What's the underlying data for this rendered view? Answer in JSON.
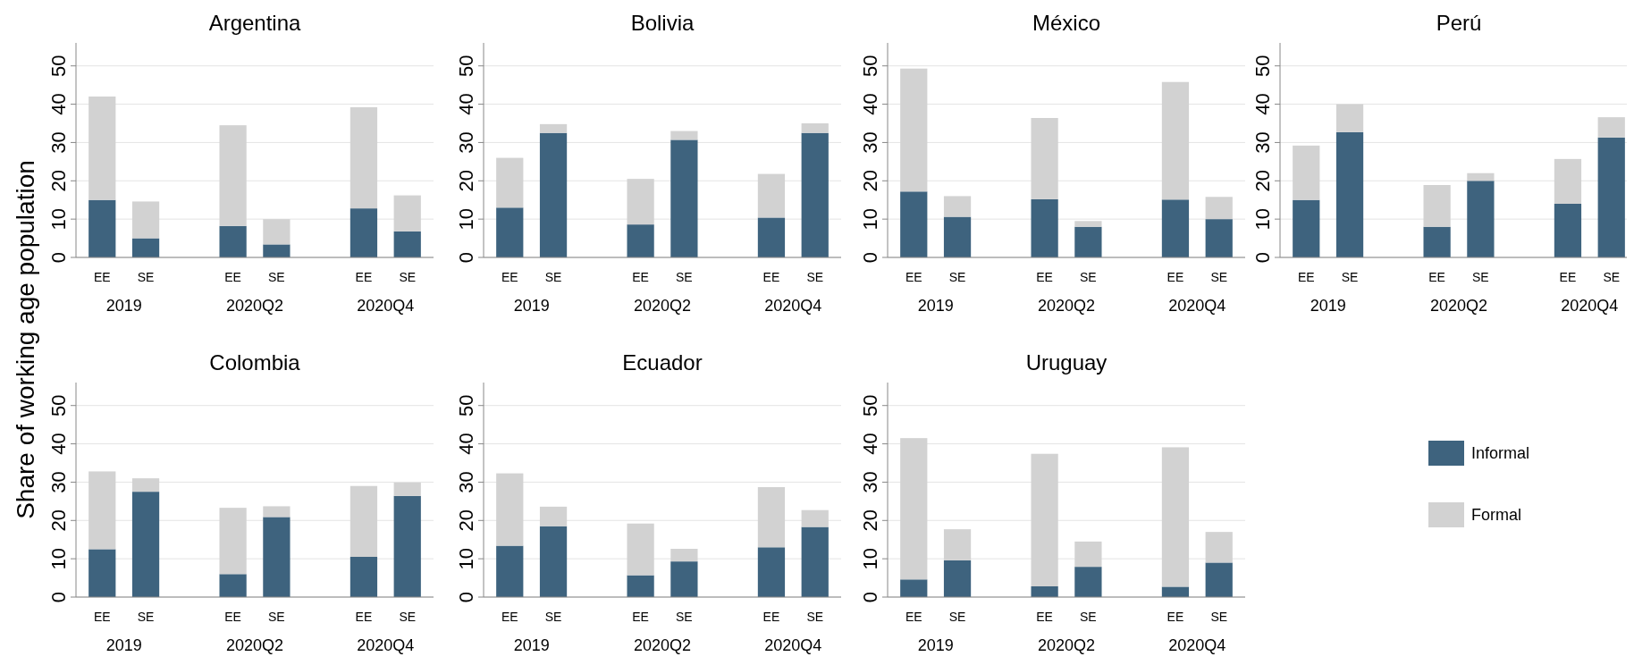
{
  "chart_data": [
    {
      "type": "bar",
      "title": "Argentina",
      "ylabel": "Share of working age population",
      "categories": [
        "EE",
        "SE",
        null,
        "EE",
        "SE",
        null,
        "EE",
        "SE"
      ],
      "annotations": [
        "2019",
        "2020Q2",
        "2020Q4"
      ],
      "stacked": true,
      "ylim": [
        0,
        56
      ],
      "yticks": [
        0,
        10,
        20,
        30,
        40,
        50
      ],
      "grid": "y",
      "series": [
        {
          "color": "#3e637e",
          "values": [
            15,
            5,
            null,
            8.2,
            3.4,
            null,
            12.8,
            6.8
          ]
        },
        {
          "color": "#d2d2d2",
          "values": [
            27,
            9.6,
            null,
            26.3,
            6.6,
            null,
            26.4,
            9.4
          ]
        }
      ]
    },
    {
      "type": "bar",
      "title": "Bolivia",
      "categories": [
        "EE",
        "SE",
        null,
        "EE",
        "SE",
        null,
        "EE",
        "SE"
      ],
      "annotations": [
        "2019",
        "2020Q2",
        "2020Q4"
      ],
      "stacked": true,
      "ylim": [
        0,
        56
      ],
      "yticks": [
        0,
        10,
        20,
        30,
        40,
        50
      ],
      "grid": "y",
      "series": [
        {
          "color": "#3e637e",
          "values": [
            13,
            32.5,
            null,
            8.6,
            30.7,
            null,
            10.4,
            32.5
          ]
        },
        {
          "color": "#d2d2d2",
          "values": [
            13,
            2.3,
            null,
            11.9,
            2.3,
            null,
            11.4,
            2.5
          ]
        }
      ]
    },
    {
      "type": "bar",
      "title": "México",
      "categories": [
        "EE",
        "SE",
        null,
        "EE",
        "SE",
        null,
        "EE",
        "SE"
      ],
      "annotations": [
        "2019",
        "2020Q2",
        "2020Q4"
      ],
      "stacked": true,
      "ylim": [
        0,
        56
      ],
      "yticks": [
        0,
        10,
        20,
        30,
        40,
        50
      ],
      "grid": "y",
      "series": [
        {
          "color": "#3e637e",
          "values": [
            17.2,
            10.6,
            null,
            15.2,
            8,
            null,
            15.1,
            10
          ]
        },
        {
          "color": "#d2d2d2",
          "values": [
            32.1,
            5.4,
            null,
            21.2,
            1.5,
            null,
            30.7,
            5.8
          ]
        }
      ]
    },
    {
      "type": "bar",
      "title": "Perú",
      "categories": [
        "EE",
        "SE",
        null,
        "EE",
        "SE",
        null,
        "EE",
        "SE"
      ],
      "annotations": [
        "2019",
        "2020Q2",
        "2020Q4"
      ],
      "stacked": true,
      "ylim": [
        0,
        56
      ],
      "yticks": [
        0,
        10,
        20,
        30,
        40,
        50
      ],
      "grid": "y",
      "series": [
        {
          "color": "#3e637e",
          "values": [
            15,
            32.7,
            null,
            8,
            20,
            null,
            14,
            31.3
          ]
        },
        {
          "color": "#d2d2d2",
          "values": [
            14.2,
            7.3,
            null,
            10.9,
            2,
            null,
            11.7,
            5.3
          ]
        }
      ]
    },
    {
      "type": "bar",
      "title": "Colombia",
      "categories": [
        "EE",
        "SE",
        null,
        "EE",
        "SE",
        null,
        "EE",
        "SE"
      ],
      "annotations": [
        "2019",
        "2020Q2",
        "2020Q4"
      ],
      "stacked": true,
      "ylim": [
        0,
        56
      ],
      "yticks": [
        0,
        10,
        20,
        30,
        40,
        50
      ],
      "grid": "y",
      "series": [
        {
          "color": "#3e637e",
          "values": [
            12.5,
            27.5,
            null,
            6,
            20.9,
            null,
            10.5,
            26.4
          ]
        },
        {
          "color": "#d2d2d2",
          "values": [
            20.3,
            3.5,
            null,
            17.3,
            2.8,
            null,
            18.5,
            3.5
          ]
        }
      ]
    },
    {
      "type": "bar",
      "title": "Ecuador",
      "categories": [
        "EE",
        "SE",
        null,
        "EE",
        "SE",
        null,
        "EE",
        "SE"
      ],
      "annotations": [
        "2019",
        "2020Q2",
        "2020Q4"
      ],
      "stacked": true,
      "ylim": [
        0,
        56
      ],
      "yticks": [
        0,
        10,
        20,
        30,
        40,
        50
      ],
      "grid": "y",
      "series": [
        {
          "color": "#3e637e",
          "values": [
            13.4,
            18.5,
            null,
            5.7,
            9.3,
            null,
            13,
            18.3
          ]
        },
        {
          "color": "#d2d2d2",
          "values": [
            18.9,
            5.1,
            null,
            13.5,
            3.3,
            null,
            15.7,
            4.4
          ]
        }
      ]
    },
    {
      "type": "bar",
      "title": "Uruguay",
      "categories": [
        "EE",
        "SE",
        null,
        "EE",
        "SE",
        null,
        "EE",
        "SE"
      ],
      "annotations": [
        "2019",
        "2020Q2",
        "2020Q4"
      ],
      "stacked": true,
      "ylim": [
        0,
        56
      ],
      "yticks": [
        0,
        10,
        20,
        30,
        40,
        50
      ],
      "grid": "y",
      "legend": "right",
      "series": [
        {
          "name": "Informal",
          "color": "#3e637e",
          "values": [
            4.6,
            9.6,
            null,
            2.8,
            7.9,
            null,
            2.7,
            9
          ]
        },
        {
          "name": "Formal",
          "color": "#d2d2d2",
          "values": [
            36.9,
            8.1,
            null,
            34.6,
            6.6,
            null,
            36.4,
            8
          ]
        }
      ]
    }
  ]
}
